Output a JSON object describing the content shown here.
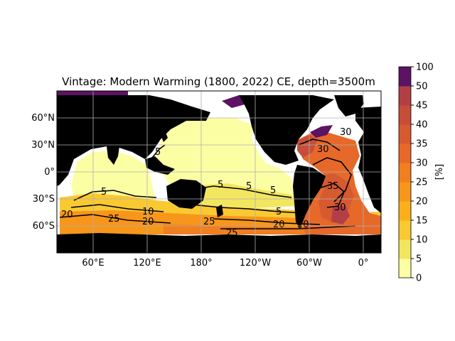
{
  "title": "Vintage: Modern Warming (1800, 2022) CE, depth=3500m",
  "map": {
    "projection": "PlateCarree, central longitude 150°E",
    "lon_range": [
      30,
      390
    ],
    "lat_range": [
      -90,
      90
    ],
    "gridlines": true,
    "land_color": "#000000",
    "missing_color": "#ffffff",
    "lon_ticks": [
      "60°E",
      "120°E",
      "180°",
      "120°W",
      "60°W",
      "0°"
    ],
    "lat_ticks": [
      "60°N",
      "30°N",
      "0°",
      "30°S",
      "60°S"
    ]
  },
  "colorbar": {
    "label": "[%]",
    "levels": [
      0,
      5,
      10,
      15,
      20,
      25,
      30,
      35,
      40,
      45,
      50,
      100
    ],
    "tick_labels": [
      "0",
      "5",
      "10",
      "15",
      "20",
      "25",
      "30",
      "35",
      "40",
      "45",
      "50",
      "100"
    ],
    "colors": [
      "#fcfea4",
      "#f2e660",
      "#f9c932",
      "#fbb01b",
      "#f7961a",
      "#f17e1f",
      "#e6692a",
      "#d65a30",
      "#c64d3a",
      "#b33f46",
      "#5c1363"
    ],
    "colormap": "inferno (reversed)"
  },
  "contour_labels": [
    "5",
    "5",
    "5",
    "5",
    "5",
    "10",
    "20",
    "20",
    "25",
    "25",
    "20",
    "30",
    "35",
    "30",
    "30",
    "20",
    "25",
    "5"
  ]
}
